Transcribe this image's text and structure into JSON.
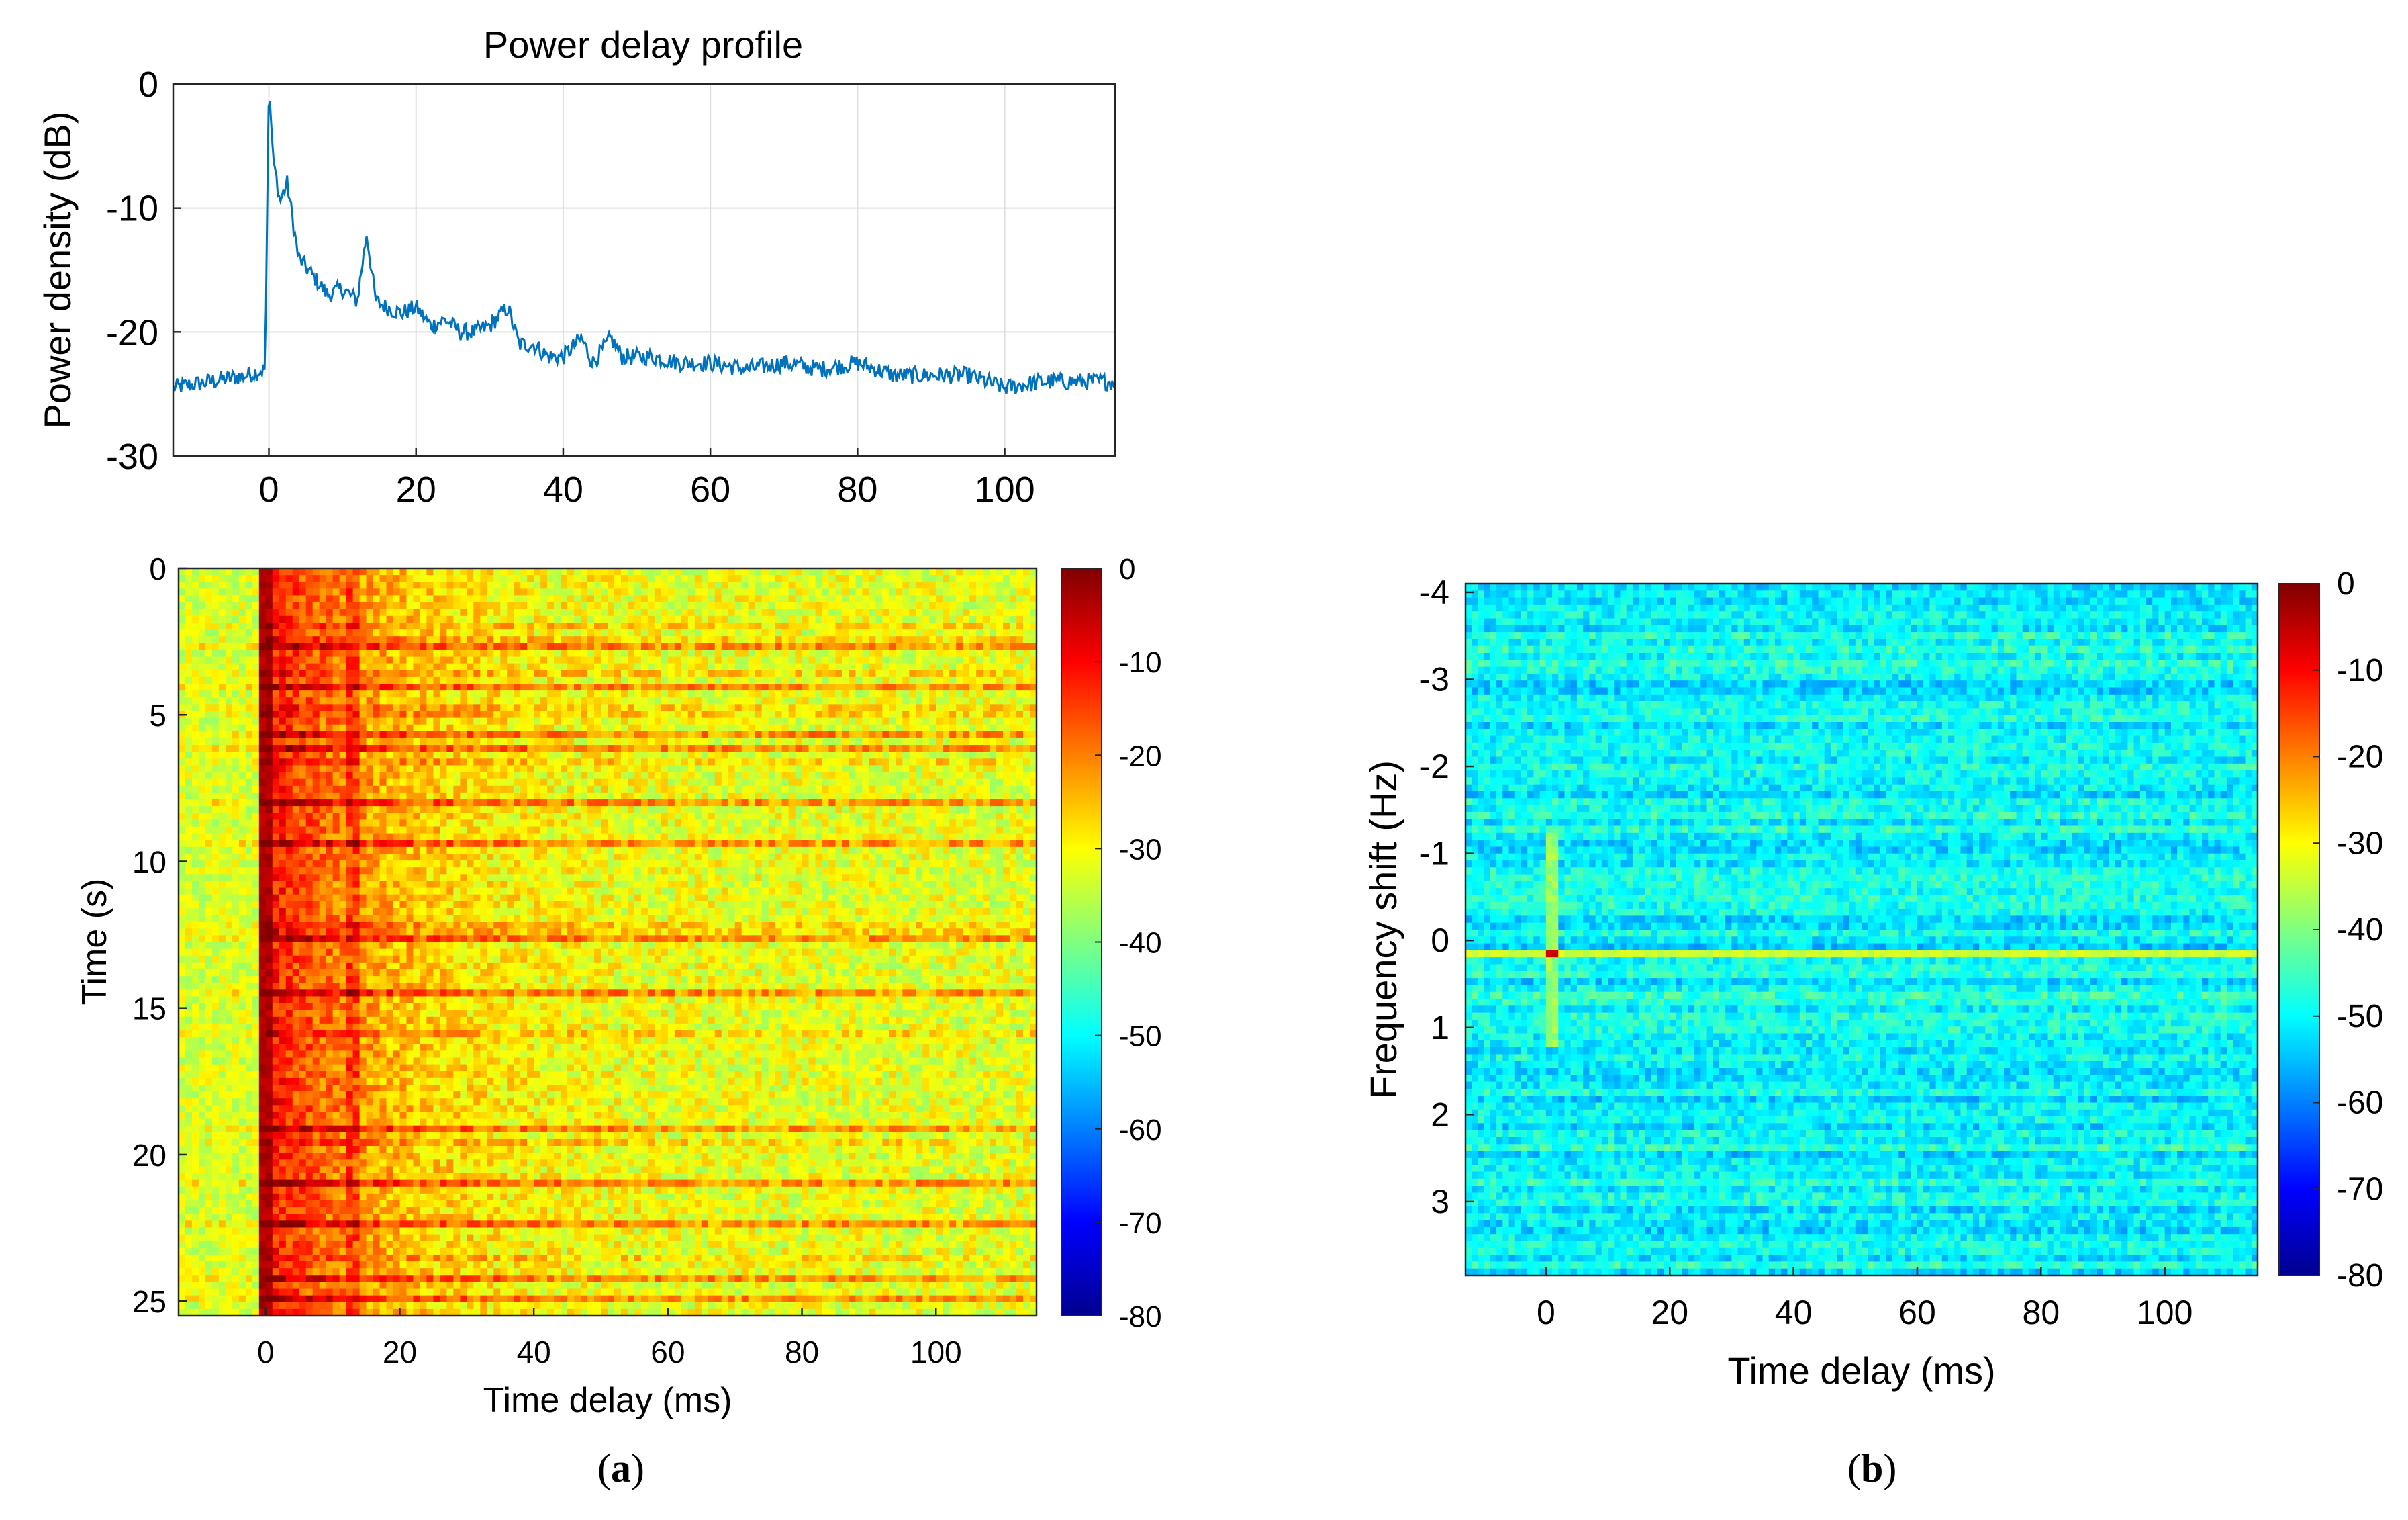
{
  "chart_data": [
    {
      "type": "line",
      "title": "Power delay profile",
      "xlabel": "",
      "ylabel": "Power density (dB)",
      "xlim": [
        -13,
        115
      ],
      "ylim": [
        -30,
        0
      ],
      "xticks": [
        0,
        20,
        40,
        60,
        80,
        100
      ],
      "yticks": [
        0,
        -10,
        -20,
        -30
      ],
      "grid": true,
      "color": "#0072BD",
      "keypoints": {
        "x": [
          -13,
          -8,
          -3,
          -0.5,
          0,
          0.6,
          1.5,
          2.5,
          4,
          6,
          8,
          10,
          12,
          13.3,
          14.5,
          16,
          18,
          20,
          22,
          24,
          26,
          28,
          30,
          32.5,
          34,
          36,
          38,
          40,
          42.5,
          44,
          46.5,
          48,
          52,
          56,
          60,
          65,
          70,
          75,
          80,
          85,
          90,
          95,
          100,
          105,
          110,
          115
        ],
        "y": [
          -24.5,
          -24,
          -23.5,
          -23,
          0,
          -6,
          -9.5,
          -8.0,
          -14.0,
          -15.5,
          -17.0,
          -16.5,
          -17.5,
          -12.0,
          -17.5,
          -18.0,
          -18.5,
          -18.0,
          -19.5,
          -19.0,
          -20.0,
          -20.0,
          -19.5,
          -18.0,
          -21.0,
          -21.0,
          -22.0,
          -22.0,
          -20.5,
          -22.5,
          -20.5,
          -22.0,
          -22.0,
          -22.5,
          -22.5,
          -23.0,
          -22.5,
          -23.0,
          -22.5,
          -23.5,
          -23.5,
          -23.5,
          -24.5,
          -24.0,
          -24.0,
          -24.0
        ]
      }
    },
    {
      "type": "heatmap",
      "panel": "(a)",
      "xlabel": "Time delay (ms)",
      "ylabel": "Time (s)",
      "xlim": [
        -13,
        115
      ],
      "ylim": [
        0,
        25.5
      ],
      "xticks": [
        0,
        20,
        40,
        60,
        80,
        100
      ],
      "yticks": [
        0,
        5,
        10,
        15,
        20,
        25
      ],
      "colormap": "jet",
      "clim": [
        -80,
        0
      ],
      "colorbar_ticks": [
        0,
        -10,
        -20,
        -30,
        -40,
        -50,
        -60,
        -70,
        -80
      ]
    },
    {
      "type": "heatmap",
      "panel": "(b)",
      "xlabel": "Time delay (ms)",
      "ylabel": "Frequency shift (Hz)",
      "xlim": [
        -13,
        115
      ],
      "ylim": [
        -4.1,
        3.85
      ],
      "xticks": [
        0,
        20,
        40,
        60,
        80,
        100
      ],
      "yticks": [
        -4,
        -3,
        -2,
        -1,
        0,
        1,
        2,
        3
      ],
      "colormap": "jet",
      "clim": [
        -80,
        0
      ],
      "colorbar_ticks": [
        0,
        -10,
        -20,
        -30,
        -40,
        -50,
        -60,
        -70,
        -80
      ]
    }
  ],
  "labels": {
    "a": "a",
    "b": "b"
  }
}
